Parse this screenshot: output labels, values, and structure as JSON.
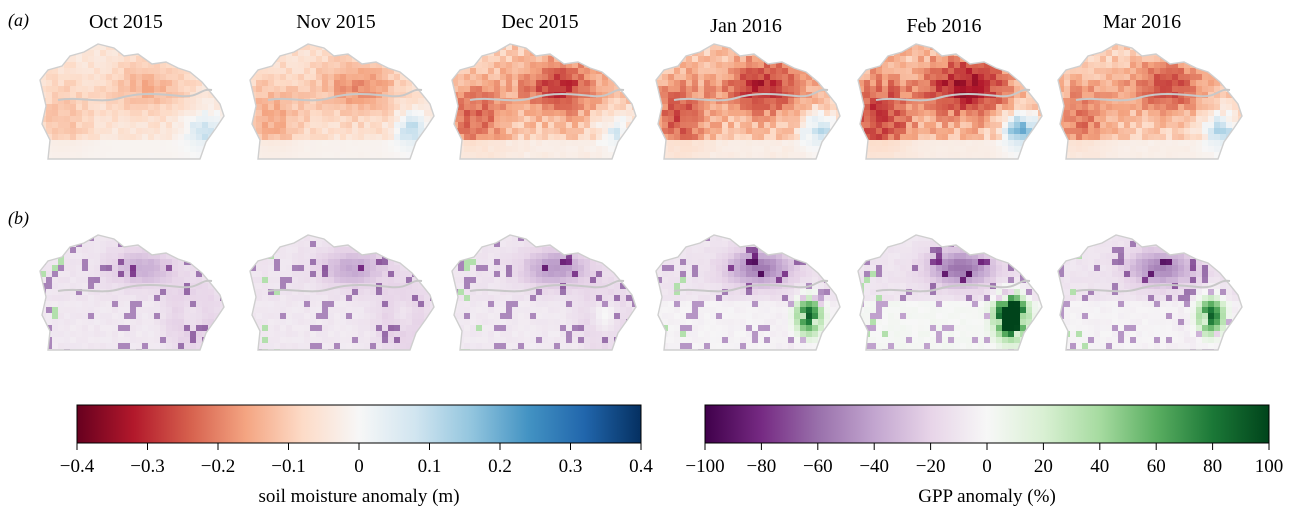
{
  "figure": {
    "panel_labels": [
      "(a)",
      "(b)"
    ],
    "months": [
      "Oct 2015",
      "Nov 2015",
      "Dec 2015",
      "Jan 2016",
      "Feb 2016",
      "Mar 2016"
    ]
  },
  "chart_data": [
    {
      "type": "heatmap",
      "panel": "(a)",
      "variable": "soil moisture anomaly (m)",
      "maps": [
        "Oct 2015",
        "Nov 2015",
        "Dec 2015",
        "Jan 2016",
        "Feb 2016",
        "Mar 2016"
      ],
      "intensity_by_month": [
        0.35,
        0.45,
        0.7,
        0.75,
        0.85,
        0.65
      ],
      "blue_patch_by_month": [
        0.25,
        0.3,
        0.25,
        0.35,
        0.55,
        0.35
      ],
      "colorbar": {
        "label": "soil moisture anomaly (m)",
        "range": [
          -0.4,
          0.4
        ],
        "ticks": [
          "−0.4",
          "−0.3",
          "−0.2",
          "−0.1",
          "0",
          "0.1",
          "0.2",
          "0.3",
          "0.4"
        ],
        "colors": [
          "#67001f",
          "#b2182b",
          "#d6604d",
          "#f4a582",
          "#fddbc7",
          "#f7f7f7",
          "#d1e5f0",
          "#92c5de",
          "#4393c3",
          "#2166ac",
          "#053061"
        ]
      }
    },
    {
      "type": "heatmap",
      "panel": "(b)",
      "variable": "GPP anomaly (%)",
      "maps": [
        "Oct 2015",
        "Nov 2015",
        "Dec 2015",
        "Jan 2016",
        "Feb 2016",
        "Mar 2016"
      ],
      "intensity_by_month": [
        0.4,
        0.45,
        0.55,
        0.7,
        0.75,
        0.65
      ],
      "green_patch_by_month": [
        0.15,
        0.15,
        0.2,
        0.6,
        1.0,
        0.6
      ],
      "colorbar": {
        "label": "GPP anomaly (%)",
        "range": [
          -100,
          100
        ],
        "ticks": [
          "−100",
          "−80",
          "−60",
          "−40",
          "−20",
          "0",
          "20",
          "40",
          "60",
          "80",
          "100"
        ],
        "colors": [
          "#40004b",
          "#762a83",
          "#9970ab",
          "#c2a5cf",
          "#e7d4e8",
          "#f7f7f7",
          "#d9f0d3",
          "#a6dba0",
          "#5aae61",
          "#1b7837",
          "#00441b"
        ]
      }
    }
  ]
}
